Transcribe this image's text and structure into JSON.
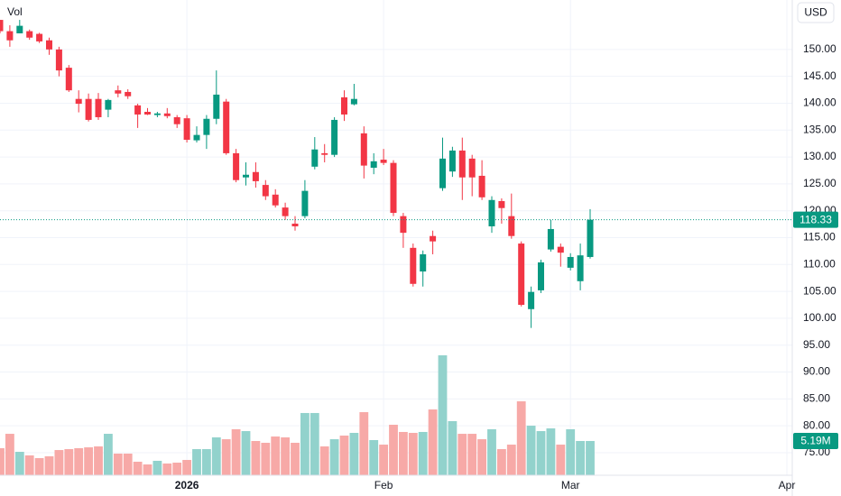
{
  "chart_data": {
    "type": "candlestick",
    "currency": "USD",
    "up_color": "#089981",
    "down_color": "#f23645",
    "volume": {
      "name": "Vol",
      "up_color": "#92d2cc",
      "down_color": "#f7a9a7",
      "values": [
        4.1,
        6.28,
        3.55,
        3.01,
        2.6,
        2.87,
        3.82,
        3.96,
        4.1,
        4.23,
        4.37,
        6.28,
        3.28,
        3.28,
        2.05,
        1.64,
        2.19,
        1.78,
        1.91,
        2.32,
        3.96,
        3.96,
        5.74,
        5.46,
        6.97,
        6.69,
        5.19,
        4.92,
        5.87,
        5.74,
        4.92,
        9.43,
        9.43,
        4.37,
        5.46,
        6.01,
        6.42,
        9.56,
        5.33,
        4.64,
        7.65,
        6.56,
        6.42,
        6.56,
        9.97,
        18.17,
        8.2,
        6.28,
        6.28,
        5.46,
        6.97,
        3.96,
        4.64,
        11.2,
        7.51,
        6.69,
        7.1,
        4.64,
        6.97,
        5.19,
        5.19
      ],
      "last_label": "5.19M",
      "lim": [
        0,
        72
      ]
    },
    "open": [
      155.5,
      153.4,
      153.0,
      153.4,
      152.9,
      151.7,
      150.0,
      146.6,
      140.8,
      140.8,
      140.8,
      138.8,
      142.4,
      142.1,
      139.6,
      138.4,
      137.8,
      138.1,
      137.4,
      137.2,
      133.1,
      134.1,
      137.1,
      140.3,
      130.7,
      126.2,
      127.2,
      124.8,
      123.0,
      120.6,
      117.6,
      119.0,
      128.2,
      130.7,
      130.4,
      141.1,
      139.8,
      134.4,
      128.0,
      129.5,
      128.9,
      119.0,
      113.1,
      108.7,
      115.3,
      124.2,
      127.3,
      131.2,
      129.7,
      126.5,
      117.1,
      121.8,
      119.0,
      113.9,
      101.7,
      105.2,
      112.8,
      113.3,
      109.4,
      106.9,
      111.4
    ],
    "high": [
      155.5,
      154.5,
      155.5,
      153.7,
      153.1,
      152.2,
      150.5,
      147.1,
      142.4,
      141.8,
      141.9,
      140.8,
      143.3,
      142.6,
      139.9,
      139.1,
      138.4,
      139.1,
      137.8,
      137.8,
      135.7,
      137.8,
      146.1,
      140.8,
      131.5,
      129.0,
      129.0,
      125.7,
      124.0,
      121.5,
      119.0,
      125.7,
      133.7,
      132.4,
      137.4,
      142.4,
      143.6,
      135.7,
      130.7,
      131.5,
      129.4,
      119.6,
      113.9,
      112.6,
      116.3,
      133.6,
      131.9,
      133.6,
      130.4,
      129.4,
      122.7,
      122.3,
      123.2,
      114.3,
      105.9,
      110.9,
      118.3,
      113.9,
      112.1,
      113.9,
      120.3
    ],
    "low": [
      153.0,
      150.5,
      153.0,
      151.8,
      151.2,
      149.0,
      145.0,
      142.1,
      138.3,
      136.6,
      136.9,
      137.4,
      141.1,
      140.8,
      135.4,
      137.8,
      137.4,
      137.2,
      135.4,
      132.7,
      132.7,
      131.5,
      136.1,
      130.4,
      125.3,
      124.7,
      124.3,
      122.0,
      120.6,
      118.3,
      116.3,
      118.6,
      127.7,
      129.0,
      130.0,
      136.7,
      139.6,
      126.0,
      126.8,
      128.5,
      119.0,
      113.1,
      105.9,
      105.9,
      111.9,
      123.7,
      126.3,
      122.0,
      122.7,
      122.0,
      115.9,
      117.6,
      114.8,
      102.2,
      98.2,
      104.7,
      112.4,
      109.6,
      108.9,
      105.2,
      111.1
    ],
    "close": [
      153.4,
      151.7,
      154.4,
      152.2,
      151.5,
      150.0,
      146.1,
      142.4,
      139.9,
      136.9,
      137.4,
      140.6,
      141.8,
      141.3,
      137.9,
      137.9,
      138.1,
      137.6,
      136.1,
      133.2,
      134.1,
      137.1,
      141.6,
      130.7,
      125.7,
      126.7,
      125.5,
      122.7,
      121.0,
      119.0,
      117.1,
      123.7,
      131.4,
      130.4,
      136.9,
      137.9,
      140.8,
      128.4,
      129.2,
      128.9,
      119.6,
      115.9,
      106.4,
      111.9,
      114.3,
      129.7,
      131.2,
      126.2,
      126.2,
      122.5,
      122.0,
      120.5,
      115.3,
      102.5,
      104.9,
      110.4,
      116.6,
      112.2,
      111.4,
      111.7,
      118.33
    ],
    "xlim": [
      0,
      80.55
    ],
    "xticks": [
      {
        "value": 19,
        "label": "2026"
      },
      {
        "value": 39,
        "label": "Feb"
      },
      {
        "value": 58,
        "label": "Mar"
      },
      {
        "value": 80,
        "label": "Apr"
      }
    ],
    "ylim": [
      70.8,
      159.2
    ],
    "yticks": [
      {
        "value": 75,
        "label": "75.00"
      },
      {
        "value": 80,
        "label": "80.00"
      },
      {
        "value": 85,
        "label": "85.00"
      },
      {
        "value": 90,
        "label": "90.00"
      },
      {
        "value": 95,
        "label": "95.00"
      },
      {
        "value": 100,
        "label": "100.00"
      },
      {
        "value": 105,
        "label": "105.00"
      },
      {
        "value": 110,
        "label": "110.00"
      },
      {
        "value": 115,
        "label": "115.00"
      },
      {
        "value": 120,
        "label": "120.00"
      },
      {
        "value": 125,
        "label": "125.00"
      },
      {
        "value": 130,
        "label": "130.00"
      },
      {
        "value": 135,
        "label": "135.00"
      },
      {
        "value": 140,
        "label": "140.00"
      },
      {
        "value": 145,
        "label": "145.00"
      },
      {
        "value": 150,
        "label": "150.00"
      }
    ],
    "grid": true
  }
}
